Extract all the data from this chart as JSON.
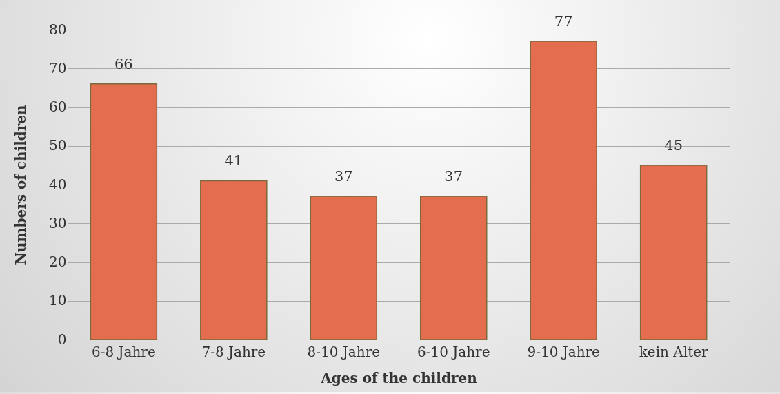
{
  "chart_data": {
    "type": "bar",
    "xlabel": "Ages of the children",
    "ylabel": "Numbers of children",
    "categories": [
      "6-8 Jahre",
      "7-8 Jahre",
      "8-10 Jahre",
      "6-10 Jahre",
      "9-10 Jahre",
      "kein Alter"
    ],
    "values": [
      66,
      41,
      37,
      37,
      77,
      45
    ],
    "color": "#e56d4f",
    "ylim": [
      0,
      80
    ],
    "yticks": [
      0,
      10,
      20,
      30,
      40,
      50,
      60,
      70,
      80
    ],
    "grid": "y",
    "data_labels": true
  }
}
